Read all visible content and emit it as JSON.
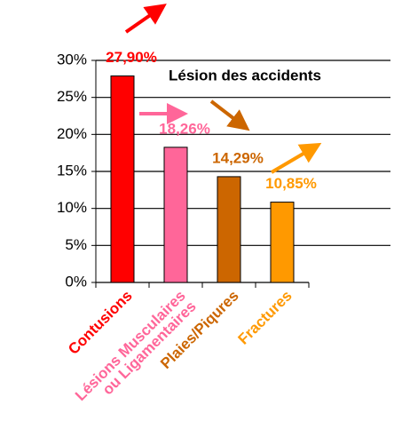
{
  "chart_data": {
    "type": "bar",
    "title": "Lésion des accidents",
    "categories": [
      "Contusions",
      "Lésions Musculaires\nou Ligamentaires",
      "Plaies/Piqures",
      "Fractures"
    ],
    "values": [
      27.9,
      18.26,
      14.29,
      10.85
    ],
    "value_labels": [
      "27,90%",
      "18,26%",
      "14,29%",
      "10,85%"
    ],
    "colors": [
      "#ff0000",
      "#ff6699",
      "#cc6600",
      "#ff9900"
    ],
    "ylim": [
      0,
      30
    ],
    "yticks": [
      {
        "value": 0,
        "label": "0%"
      },
      {
        "value": 5,
        "label": "5%"
      },
      {
        "value": 10,
        "label": "10%"
      },
      {
        "value": 15,
        "label": "15%"
      },
      {
        "value": 20,
        "label": "20%"
      },
      {
        "value": 25,
        "label": "25%"
      },
      {
        "value": 30,
        "label": "30%"
      }
    ],
    "grid": true
  }
}
